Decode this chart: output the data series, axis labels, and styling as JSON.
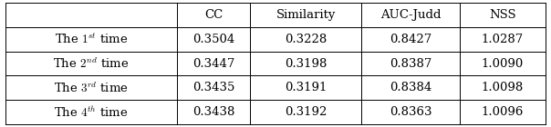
{
  "col_headers": [
    "",
    "CC",
    "Similarity",
    "AUC-Judd",
    "NSS"
  ],
  "row_labels_tex": [
    "The $1^{st}$ time",
    "The $2^{nd}$ time",
    "The $3^{rd}$ time",
    "The $4^{th}$ time"
  ],
  "table_data": [
    [
      0.3504,
      0.3228,
      0.8427,
      1.0287
    ],
    [
      0.3447,
      0.3198,
      0.8387,
      1.009
    ],
    [
      0.3435,
      0.3191,
      0.8384,
      1.0098
    ],
    [
      0.3438,
      0.3192,
      0.8363,
      1.0096
    ]
  ],
  "background_color": "#ffffff",
  "font_size": 9.5,
  "figwidth": 6.04,
  "figheight": 1.4,
  "dpi": 100
}
